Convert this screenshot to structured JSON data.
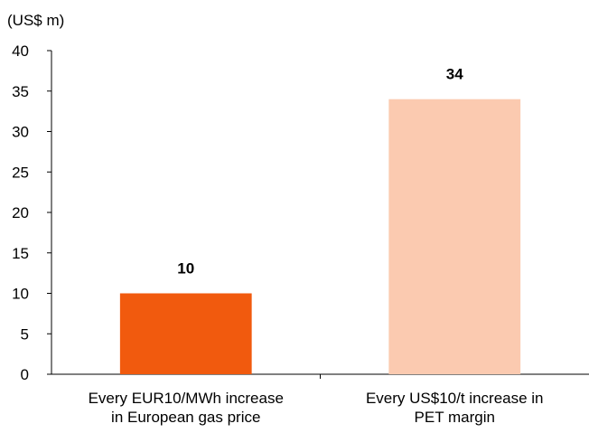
{
  "chart_data": {
    "type": "bar",
    "unit_label": "(US$ m)",
    "categories": [
      [
        "Every EUR10/MWh increase",
        "in European gas price"
      ],
      [
        "Every US$10/t increase in",
        "PET margin"
      ]
    ],
    "values": [
      10,
      34
    ],
    "data_labels": [
      "10",
      "34"
    ],
    "bar_colors": [
      "#f15a0e",
      "#fbcab0"
    ],
    "ylim": [
      0,
      40
    ],
    "yticks": [
      0,
      5,
      10,
      15,
      20,
      25,
      30,
      35,
      40
    ],
    "grid": false,
    "legend": "none"
  }
}
